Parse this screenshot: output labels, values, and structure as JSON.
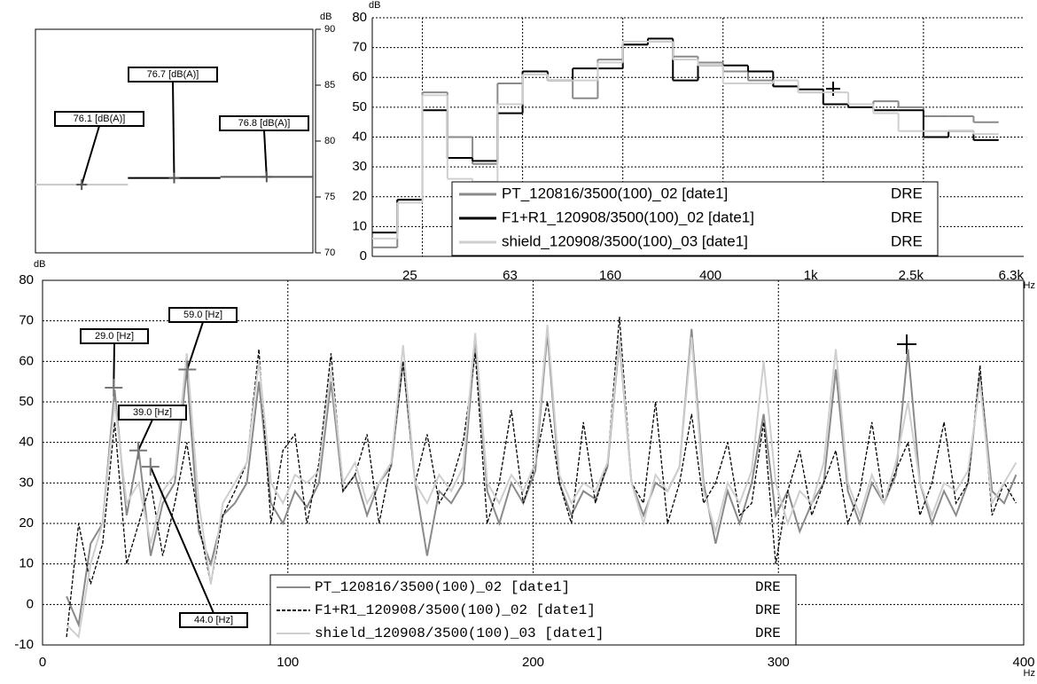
{
  "chart_data": [
    {
      "type": "level",
      "ylabel": "dB",
      "values": [
        76.1,
        76.7,
        76.8
      ],
      "value_labels": [
        "76.1 [dB(A)]",
        "76.7 [dB(A)]",
        "76.8 [dB(A)]"
      ],
      "colors": [
        "#c8c8c8",
        "#000000",
        "#555555"
      ],
      "ylim": [
        70,
        90
      ],
      "yticks": [
        70,
        75,
        80,
        85,
        90
      ]
    },
    {
      "type": "step",
      "ylabel": "dB",
      "xlabel": "Hz",
      "categories": [
        null,
        "25",
        null,
        null,
        null,
        "63",
        null,
        null,
        null,
        "160",
        null,
        null,
        null,
        "400",
        null,
        null,
        null,
        "1k",
        null,
        null,
        null,
        "2.5k",
        null,
        null,
        null,
        "6.3k"
      ],
      "ylim": [
        0,
        80
      ],
      "yticks": [
        0,
        10,
        20,
        30,
        40,
        50,
        60,
        70,
        80
      ],
      "grid": true,
      "series": [
        {
          "name": "PT_120816/3500(100)_02 [date1]",
          "channel": "DRE",
          "color": "#8a8a8a",
          "values": [
            3,
            19,
            55,
            40,
            31,
            58,
            62,
            59,
            53,
            66,
            71,
            72,
            67,
            65,
            62,
            59,
            57,
            55,
            51,
            51,
            52,
            50,
            47,
            47,
            45,
            null
          ]
        },
        {
          "name": "F1+R1_120908/3500(100)_02 [date1]",
          "channel": "DRE",
          "color": "#000000",
          "values": [
            8,
            19,
            49,
            33,
            32,
            48,
            62,
            59,
            63,
            63,
            71,
            73,
            59,
            64,
            64,
            62,
            57,
            56,
            51,
            50,
            49,
            49,
            40,
            42,
            39,
            null
          ]
        },
        {
          "name": "shield_120908/3500(100)_03 [date1]",
          "channel": "DRE",
          "color": "#cfcfcf",
          "values": [
            6,
            18,
            54,
            26,
            25,
            51,
            61,
            59,
            59,
            65,
            72,
            72,
            66,
            64,
            58,
            58,
            59,
            55,
            55,
            51,
            48,
            42,
            42,
            42,
            41,
            null
          ]
        }
      ]
    },
    {
      "type": "line",
      "ylabel": "dB",
      "xlabel": "Hz",
      "xlim": [
        0,
        400
      ],
      "xticks": [
        0,
        100,
        200,
        300,
        400
      ],
      "ylim": [
        -10,
        80
      ],
      "yticks": [
        -10,
        0,
        10,
        20,
        30,
        40,
        50,
        60,
        70,
        80
      ],
      "grid": true,
      "x": [
        9.8,
        14.7,
        19.6,
        24.5,
        29.4,
        34.3,
        39.2,
        44.1,
        49,
        53.9,
        58.8,
        63.7,
        68.6,
        73.5,
        78.4,
        83.3,
        88.2,
        93.1,
        98,
        102.9,
        107.8,
        112.7,
        117.6,
        122.5,
        127.4,
        132.3,
        137.2,
        142.1,
        147,
        151.9,
        156.8,
        161.7,
        166.6,
        171.5,
        176.4,
        181.3,
        186.2,
        191.1,
        196,
        200.9,
        205.8,
        210.7,
        215.6,
        220.5,
        225.4,
        230.3,
        235.2,
        240.1,
        245,
        249.9,
        254.8,
        259.7,
        264.6,
        269.5,
        274.4,
        279.3,
        284.2,
        289.1,
        294,
        298.9,
        303.8,
        308.7,
        313.6,
        318.5,
        323.4,
        328.3,
        333.2,
        338.1,
        343,
        347.9,
        352.8,
        357.7,
        362.6,
        367.5,
        372.4,
        377.3,
        382.2,
        387.1,
        392,
        396.9
      ],
      "series": [
        {
          "name": "PT_120816/3500(100)_02 [date1]",
          "channel": "DRE",
          "color": "#8a8a8a",
          "dashed": false,
          "values": [
            2,
            -5,
            15,
            20,
            53,
            22,
            38,
            12,
            25,
            30,
            58,
            18,
            10,
            22,
            25,
            30,
            55,
            25,
            20,
            28,
            24,
            30,
            55,
            28,
            32,
            22,
            30,
            34,
            60,
            30,
            12,
            28,
            25,
            30,
            65,
            28,
            20,
            30,
            25,
            33,
            67,
            30,
            22,
            28,
            26,
            34,
            65,
            30,
            22,
            30,
            28,
            34,
            68,
            30,
            15,
            28,
            20,
            30,
            47,
            22,
            28,
            18,
            25,
            30,
            58,
            28,
            20,
            30,
            25,
            32,
            63,
            30,
            20,
            28,
            22,
            30,
            57,
            28,
            25,
            32
          ]
        },
        {
          "name": "F1+R1_120908/3500(100)_02 [date1]",
          "channel": "DRE",
          "color": "#000000",
          "dashed": true,
          "values": [
            -8,
            20,
            5,
            15,
            45,
            10,
            20,
            30,
            12,
            25,
            40,
            20,
            5,
            22,
            28,
            35,
            63,
            20,
            38,
            42,
            20,
            35,
            62,
            28,
            32,
            42,
            20,
            35,
            60,
            30,
            42,
            25,
            30,
            40,
            62,
            20,
            30,
            48,
            25,
            35,
            50,
            30,
            20,
            45,
            25,
            35,
            71,
            30,
            25,
            50,
            20,
            30,
            47,
            25,
            30,
            40,
            22,
            25,
            45,
            10,
            28,
            38,
            22,
            30,
            38,
            20,
            28,
            45,
            25,
            33,
            40,
            22,
            30,
            45,
            25,
            30,
            59,
            22,
            30,
            25
          ]
        },
        {
          "name": "shield_120908/3500(100)_03 [date1]",
          "channel": "DRE",
          "color": "#cfcfcf",
          "dashed": false,
          "values": [
            -5,
            -8,
            10,
            20,
            50,
            25,
            30,
            15,
            28,
            32,
            62,
            25,
            5,
            25,
            30,
            35,
            60,
            30,
            25,
            32,
            30,
            33,
            58,
            30,
            35,
            25,
            30,
            35,
            64,
            30,
            25,
            32,
            28,
            34,
            67,
            30,
            25,
            32,
            28,
            35,
            69,
            32,
            25,
            30,
            28,
            35,
            66,
            30,
            20,
            32,
            28,
            34,
            66,
            28,
            18,
            30,
            25,
            33,
            60,
            30,
            20,
            28,
            25,
            35,
            63,
            30,
            22,
            32,
            25,
            35,
            50,
            30,
            22,
            30,
            28,
            33,
            55,
            25,
            30,
            35
          ]
        }
      ],
      "annotations": [
        {
          "text": "29.0 [Hz]",
          "x": 29,
          "y": 53.5
        },
        {
          "text": "59.0 [Hz]",
          "x": 59,
          "y": 58
        },
        {
          "text": "39.0 [Hz]",
          "x": 39,
          "y": 38
        },
        {
          "text": "44.0 [Hz]",
          "x": 44,
          "y": 34
        }
      ]
    }
  ]
}
